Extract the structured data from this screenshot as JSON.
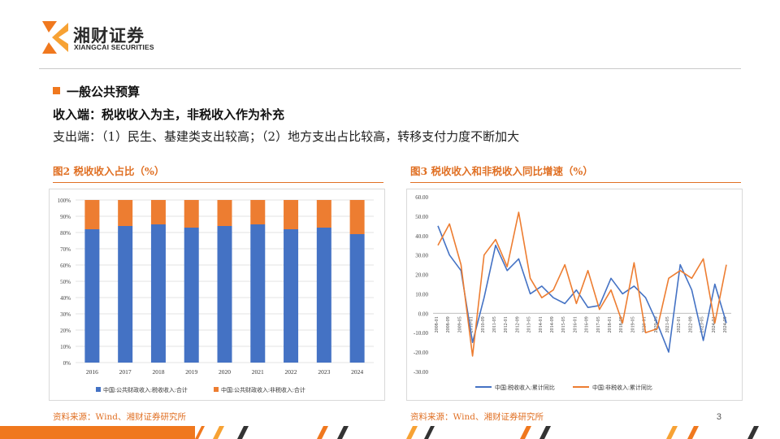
{
  "brand": {
    "name_cn": "湘财证券",
    "name_en": "XIANGCAI SECURITIES"
  },
  "section": {
    "title": "一般公共预算",
    "line1": "收入端：税收收入为主，非税收入作为补充",
    "line2": "支出端：（1）民生、基建类支出较高；（2）地方支出占比较高，转移支付力度不断加大"
  },
  "figure2": {
    "title": "图2 税收收入占比（%）",
    "source": "资料来源：Wind、湘财证券研究所"
  },
  "figure3": {
    "title": "图3 税收收入和非税收入同比增速（%）",
    "source": "资料来源：Wind、湘财证券研究所"
  },
  "page_number": "3",
  "colors": {
    "accent": "#f0781e",
    "blue": "#4472c4",
    "orange": "#ed7d31"
  },
  "chart_data": [
    {
      "type": "bar",
      "stacked": true,
      "categories": [
        "2016",
        "2017",
        "2018",
        "2019",
        "2020",
        "2021",
        "2022",
        "2023",
        "2024"
      ],
      "series": [
        {
          "name": "中国:公共财政收入:税收收入:合计",
          "values": [
            82,
            84,
            85,
            83,
            84,
            85,
            82,
            83,
            79
          ],
          "color": "#4472c4"
        },
        {
          "name": "中国:公共财政收入:非税收入:合计",
          "values": [
            18,
            16,
            15,
            17,
            16,
            15,
            18,
            17,
            21
          ],
          "color": "#ed7d31"
        }
      ],
      "ylim": [
        0,
        100
      ],
      "yticks": [
        "0%",
        "10%",
        "20%",
        "30%",
        "40%",
        "50%",
        "60%",
        "70%",
        "80%",
        "90%",
        "100%"
      ],
      "grid": true,
      "legend": "bottom"
    },
    {
      "type": "line",
      "x": [
        "2008-01",
        "2008-09",
        "2009-05",
        "2010-01",
        "2010-09",
        "2011-05",
        "2012-01",
        "2012-09",
        "2013-05",
        "2014-01",
        "2014-09",
        "2015-05",
        "2016-01",
        "2016-09",
        "2017-05",
        "2018-01",
        "2018-09",
        "2019-05",
        "2020-01",
        "2020-09",
        "2021-05",
        "2022-01",
        "2022-09",
        "2023-05",
        "2024-01",
        "2024-09"
      ],
      "series": [
        {
          "name": "中国:税收收入:累计同比",
          "color": "#4472c4",
          "values": [
            45,
            30,
            22,
            -15,
            8,
            35,
            22,
            28,
            10,
            14,
            8,
            5,
            12,
            3,
            4,
            18,
            10,
            14,
            8,
            -5,
            -20,
            25,
            12,
            -14,
            15,
            -5
          ]
        },
        {
          "name": "中国:非税收入:累计同比",
          "color": "#ed7d31",
          "values": [
            35,
            46,
            25,
            -22,
            30,
            38,
            24,
            52,
            18,
            8,
            12,
            25,
            5,
            22,
            2,
            12,
            -5,
            26,
            -10,
            -8,
            18,
            22,
            18,
            28,
            -5,
            25
          ]
        }
      ],
      "ylim": [
        -30,
        60
      ],
      "yticks": [
        "60.00",
        "50.00",
        "40.00",
        "30.00",
        "20.00",
        "10.00",
        "0.00",
        "-10.00",
        "-20.00",
        "-30.00"
      ],
      "grid": false,
      "legend": "bottom"
    }
  ]
}
